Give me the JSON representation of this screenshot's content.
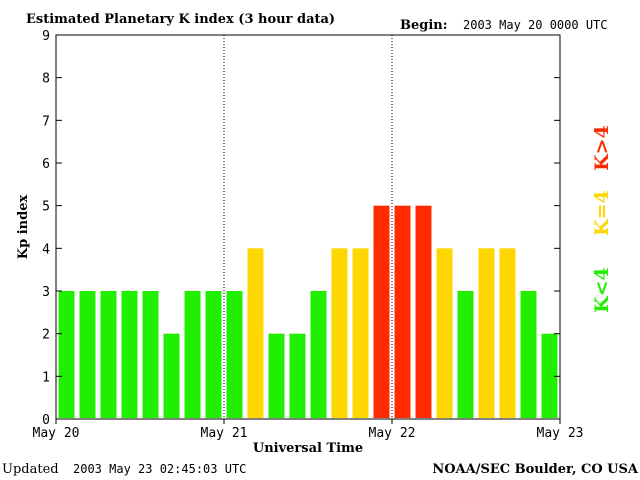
{
  "header": {
    "title": "Estimated Planetary K index (3 hour data)",
    "begin_label": "Begin:",
    "begin_value": "2003 May 20 0000 UTC"
  },
  "footer": {
    "updated_label": "Updated",
    "updated_value": "2003 May 23 02:45:03 UTC",
    "source": "NOAA/SEC Boulder, CO USA"
  },
  "legend": [
    {
      "label": "K<4",
      "color": "#22ee00"
    },
    {
      "label": "K=4",
      "color": "#ffd700"
    },
    {
      "label": "K>4",
      "color": "#ff2a00"
    }
  ],
  "chart_data": {
    "type": "bar",
    "title": "Estimated Planetary K index (3 hour data)",
    "xlabel": "Universal Time",
    "ylabel": "Kp index",
    "ylim": [
      0,
      9
    ],
    "yticks": [
      0,
      1,
      2,
      3,
      4,
      5,
      6,
      7,
      8,
      9
    ],
    "xticks": [
      "May 20",
      "May 21",
      "May 22",
      "May 23"
    ],
    "day_dividers": [
      "May 21",
      "May 22"
    ],
    "bins_per_day": 8,
    "values": [
      3,
      3,
      3,
      3,
      3,
      2,
      3,
      3,
      3,
      4,
      2,
      2,
      3,
      4,
      4,
      5,
      5,
      5,
      4,
      3,
      4,
      4,
      3,
      2
    ],
    "colors": {
      "low": "#22ee00",
      "mid": "#ffd700",
      "high": "#ff2a00"
    },
    "grid": false
  }
}
